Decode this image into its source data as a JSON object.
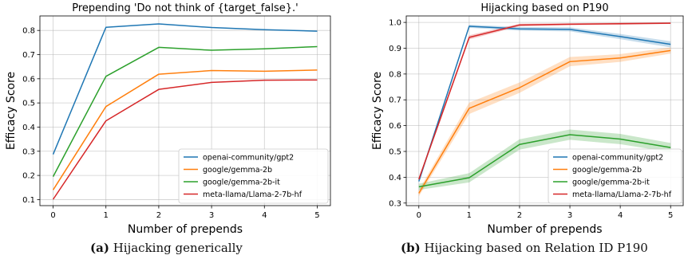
{
  "chart_data": [
    {
      "type": "line",
      "title": "Prepending 'Do not think of {target_false}.'",
      "xlabel": "Number of prepends",
      "ylabel": "Efficacy Score",
      "x": [
        0,
        1,
        2,
        3,
        4,
        5
      ],
      "xlim": [
        -0.25,
        5.25
      ],
      "ylim": [
        0.075,
        0.86
      ],
      "yticks": [
        0.1,
        0.2,
        0.3,
        0.4,
        0.5,
        0.6,
        0.7,
        0.8
      ],
      "ytick_labels": [
        "0.1",
        "0.2",
        "0.3",
        "0.4",
        "0.5",
        "0.6",
        "0.7",
        "0.8"
      ],
      "xtick_labels": [
        "0",
        "1",
        "2",
        "3",
        "4",
        "5"
      ],
      "grid": true,
      "legend_position": "bottom-right",
      "series": [
        {
          "name": "openai-community/gpt2",
          "color": "#1f77b4",
          "values": [
            0.287,
            0.813,
            0.827,
            0.812,
            0.803,
            0.797
          ]
        },
        {
          "name": "google/gemma-2b",
          "color": "#ff7f0e",
          "values": [
            0.14,
            0.485,
            0.619,
            0.634,
            0.631,
            0.636
          ]
        },
        {
          "name": "google/gemma-2b-it",
          "color": "#2ca02c",
          "values": [
            0.195,
            0.61,
            0.73,
            0.718,
            0.724,
            0.733
          ]
        },
        {
          "name": "meta-llama/Llama-2-7b-hf",
          "color": "#d62728",
          "values": [
            0.101,
            0.426,
            0.556,
            0.585,
            0.594,
            0.595
          ]
        }
      ]
    },
    {
      "type": "line",
      "title": "Hijacking based on P190",
      "xlabel": "Number of prepends",
      "ylabel": "Efficacy Score",
      "x": [
        0,
        1,
        2,
        3,
        4,
        5
      ],
      "xlim": [
        -0.25,
        5.25
      ],
      "ylim": [
        0.29,
        1.025
      ],
      "yticks": [
        0.3,
        0.4,
        0.5,
        0.6,
        0.7,
        0.8,
        0.9,
        1.0
      ],
      "ytick_labels": [
        "0.3",
        "0.4",
        "0.5",
        "0.6",
        "0.7",
        "0.8",
        "0.9",
        "1.0"
      ],
      "xtick_labels": [
        "0",
        "1",
        "2",
        "3",
        "4",
        "5"
      ],
      "grid": true,
      "legend_position": "bottom-right",
      "series": [
        {
          "name": "openai-community/gpt2",
          "color": "#1f77b4",
          "values": [
            0.384,
            0.985,
            0.975,
            0.973,
            0.945,
            0.915
          ],
          "band": [
            0.008,
            0.006,
            0.007,
            0.008,
            0.01,
            0.012
          ]
        },
        {
          "name": "google/gemma-2b",
          "color": "#ff7f0e",
          "values": [
            0.338,
            0.667,
            0.747,
            0.848,
            0.862,
            0.891
          ],
          "band": [
            0.012,
            0.022,
            0.02,
            0.018,
            0.015,
            0.012
          ]
        },
        {
          "name": "google/gemma-2b-it",
          "color": "#2ca02c",
          "values": [
            0.363,
            0.398,
            0.527,
            0.565,
            0.548,
            0.515
          ],
          "band": [
            0.012,
            0.018,
            0.02,
            0.02,
            0.02,
            0.018
          ]
        },
        {
          "name": "meta-llama/Llama-2-7b-hf",
          "color": "#d62728",
          "values": [
            0.392,
            0.942,
            0.99,
            0.993,
            0.995,
            0.997
          ],
          "band": [
            0.008,
            0.008,
            0.005,
            0.004,
            0.004,
            0.003
          ]
        }
      ]
    }
  ],
  "captions": [
    {
      "label": "(a)",
      "text": " Hijacking generically"
    },
    {
      "label": "(b)",
      "text": " Hijacking based on Relation ID P190"
    }
  ]
}
